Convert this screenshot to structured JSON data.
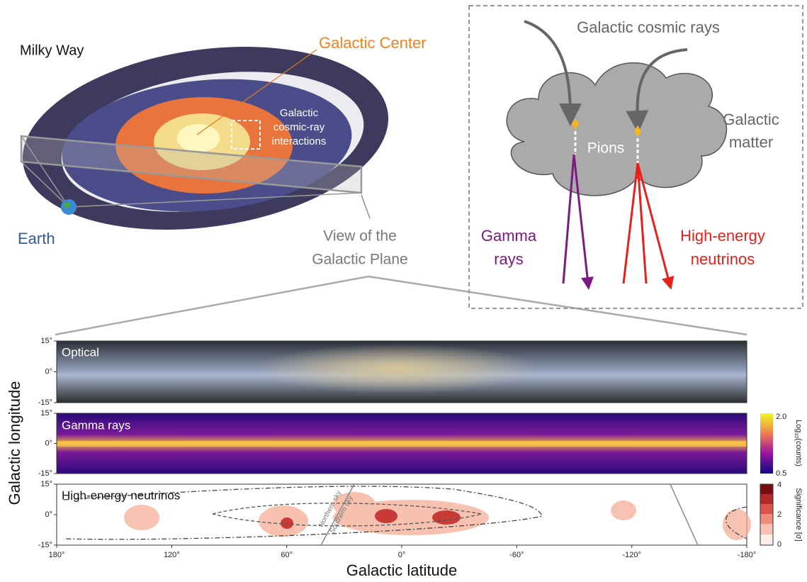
{
  "illustration": {
    "milky_way": "Milky Way",
    "galactic_center": "Galactic Center",
    "interactions": [
      "Galactic",
      "cosmic-ray",
      "interactions"
    ],
    "earth": "Earth",
    "view": [
      "View of the",
      "Galactic Plane"
    ]
  },
  "diagram": {
    "cosmic_rays": "Galactic cosmic rays",
    "matter": [
      "Galactic",
      "matter"
    ],
    "pions": "Pions",
    "gamma": [
      "Gamma",
      "rays"
    ],
    "neutrinos": [
      "High-energy",
      "neutrinos"
    ]
  },
  "sky_maps": {
    "panels": [
      "Optical",
      "Gamma rays",
      "High-energy neutrinos"
    ],
    "y_ticks": [
      "15°",
      "0°",
      "-15°"
    ],
    "x_ticks": [
      "180°",
      "120°",
      "60°",
      "0°",
      "-60°",
      "-120°",
      "-180°"
    ],
    "x_label": "Galactic latitude",
    "y_label": "Galactic longitude",
    "gamma_colorbar": {
      "ticks": [
        "2.0",
        "0.5"
      ],
      "label": [
        "Log",
        "10",
        "(counts)"
      ]
    },
    "neutrino_colorbar": {
      "ticks": [
        "4",
        "2",
        "0"
      ],
      "label": "Significance [σ]"
    },
    "sky_labels": [
      "Northern sky",
      "Southern sky"
    ]
  }
}
